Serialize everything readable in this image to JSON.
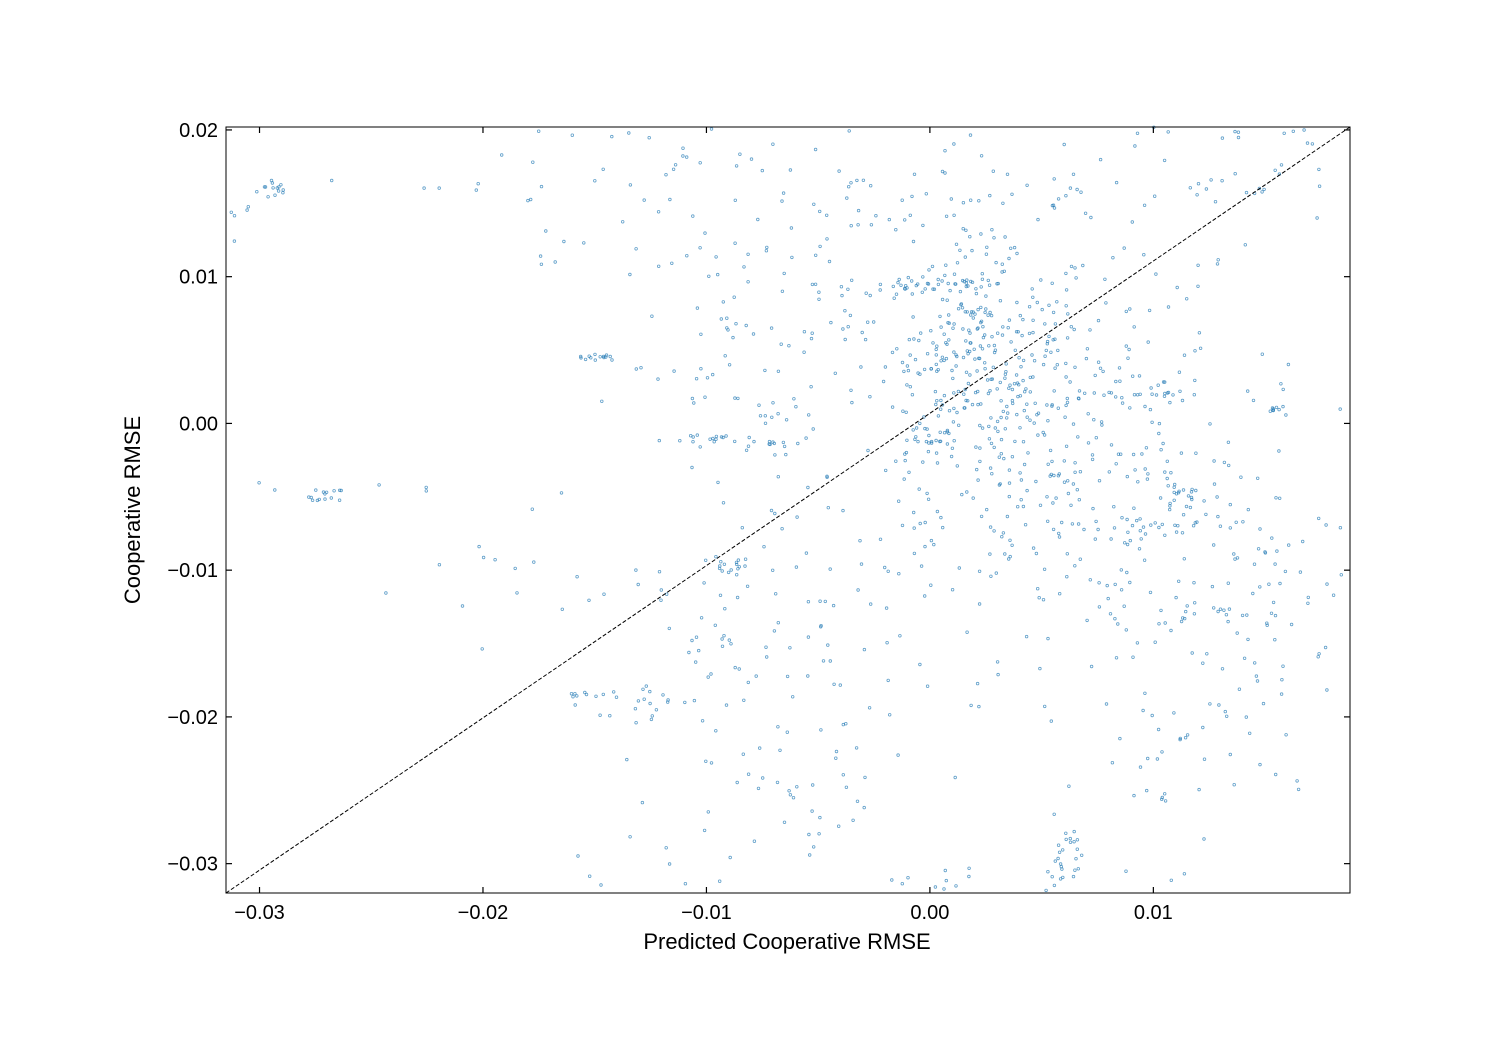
{
  "chart_data": {
    "type": "scatter",
    "xlabel": "Predicted Cooperative RMSE",
    "ylabel": "Cooperative RMSE",
    "xlim": [
      -0.0315,
      0.0188
    ],
    "ylim": [
      -0.032,
      0.0202
    ],
    "x_ticks": [
      -0.03,
      -0.02,
      -0.01,
      0.0,
      0.01
    ],
    "x_tick_labels": [
      "−0.03",
      "−0.02",
      "−0.01",
      "0.00",
      "0.01"
    ],
    "y_ticks": [
      -0.03,
      -0.02,
      -0.01,
      0.0,
      0.01,
      0.02
    ],
    "y_tick_labels": [
      "−0.03",
      "−0.02",
      "−0.01",
      "0.00",
      "0.01",
      "0.02"
    ],
    "grid": false,
    "legend": "none",
    "reference_line": {
      "style": "dashed",
      "from": [
        -0.0315,
        -0.032
      ],
      "to": [
        0.0188,
        0.0202
      ]
    },
    "series": [
      {
        "marker": "hollow-circle",
        "color": "#1f77b4",
        "clusters": [
          {
            "x": -0.0293,
            "y": 0.016,
            "sx": 0.0004,
            "sy": 0.0004,
            "n": 14
          },
          {
            "x": -0.031,
            "y": 0.014,
            "sx": 0.0004,
            "sy": 0.0006,
            "n": 6
          },
          {
            "x": -0.0148,
            "y": 0.0045,
            "sx": 0.0005,
            "sy": 0.0001,
            "n": 14
          },
          {
            "x": -0.027,
            "y": -0.005,
            "sx": 0.0004,
            "sy": 0.0003,
            "n": 14
          },
          {
            "x": -0.009,
            "y": -0.0097,
            "sx": 0.0005,
            "sy": 0.0003,
            "n": 16
          },
          {
            "x": -0.0155,
            "y": -0.0185,
            "sx": 0.0005,
            "sy": 0.0001,
            "n": 8
          },
          {
            "x": 0.011,
            "y": -0.005,
            "sx": 0.0006,
            "sy": 0.0005,
            "n": 18
          },
          {
            "x": 0.01,
            "y": -0.0072,
            "sx": 0.001,
            "sy": 0.0003,
            "n": 16
          },
          {
            "x": 0.009,
            "y": 0.002,
            "sx": 0.0015,
            "sy": 0.0002,
            "n": 20
          },
          {
            "x": 0.0152,
            "y": 0.001,
            "sx": 0.0004,
            "sy": 0.0001,
            "n": 8
          },
          {
            "x": 0.0,
            "y": -0.0008,
            "sx": 0.0006,
            "sy": 0.0004,
            "n": 12
          },
          {
            "x": -0.0095,
            "y": -0.001,
            "sx": 0.0012,
            "sy": 0.0002,
            "n": 14
          },
          {
            "x": -0.007,
            "y": -0.0013,
            "sx": 0.001,
            "sy": 0.0002,
            "n": 10
          },
          {
            "x": 0.002,
            "y": 0.005,
            "sx": 0.002,
            "sy": 0.003,
            "n": 150
          },
          {
            "x": 0.0,
            "y": 0.0095,
            "sx": 0.0025,
            "sy": 0.0003,
            "n": 40
          },
          {
            "x": 0.004,
            "y": 0.0,
            "sx": 0.005,
            "sy": 0.006,
            "n": 420
          },
          {
            "x": 0.01,
            "y": -0.012,
            "sx": 0.004,
            "sy": 0.005,
            "n": 110
          },
          {
            "x": 0.0,
            "y": 0.014,
            "sx": 0.006,
            "sy": 0.003,
            "n": 100
          },
          {
            "x": -0.008,
            "y": 0.004,
            "sx": 0.003,
            "sy": 0.005,
            "n": 80
          },
          {
            "x": -0.005,
            "y": -0.016,
            "sx": 0.004,
            "sy": 0.004,
            "n": 70
          },
          {
            "x": 0.011,
            "y": -0.024,
            "sx": 0.002,
            "sy": 0.003,
            "n": 30
          },
          {
            "x": 0.006,
            "y": -0.03,
            "sx": 0.0004,
            "sy": 0.0015,
            "n": 30
          },
          {
            "x": 0.0155,
            "y": -0.012,
            "sx": 0.0025,
            "sy": 0.005,
            "n": 60
          },
          {
            "x": 0.014,
            "y": 0.016,
            "sx": 0.003,
            "sy": 0.0008,
            "n": 25
          },
          {
            "x": 0.014,
            "y": 0.0196,
            "sx": 0.003,
            "sy": 0.0004,
            "n": 12
          },
          {
            "x": -0.012,
            "y": 0.018,
            "sx": 0.005,
            "sy": 0.002,
            "n": 30
          },
          {
            "x": -0.019,
            "y": -0.011,
            "sx": 0.004,
            "sy": 0.002,
            "n": 15
          },
          {
            "x": -0.0125,
            "y": -0.019,
            "sx": 0.0015,
            "sy": 0.001,
            "n": 20
          },
          {
            "x": -0.008,
            "y": -0.024,
            "sx": 0.002,
            "sy": 0.002,
            "n": 20
          },
          {
            "x": -0.012,
            "y": -0.03,
            "sx": 0.003,
            "sy": 0.0007,
            "n": 10
          },
          {
            "x": -0.005,
            "y": -0.027,
            "sx": 0.0015,
            "sy": 0.0015,
            "n": 12
          },
          {
            "x": 0.001,
            "y": -0.031,
            "sx": 0.002,
            "sy": 0.0005,
            "n": 10
          },
          {
            "x": -0.024,
            "y": -0.0043,
            "sx": 0.002,
            "sy": 0.0002,
            "n": 6
          },
          {
            "x": -0.022,
            "y": 0.0162,
            "sx": 0.003,
            "sy": 0.0002,
            "n": 6
          },
          {
            "x": -0.017,
            "y": 0.012,
            "sx": 0.0008,
            "sy": 0.0008,
            "n": 6
          },
          {
            "x": -0.01,
            "y": -0.014,
            "sx": 0.001,
            "sy": 0.002,
            "n": 15
          }
        ]
      }
    ]
  }
}
